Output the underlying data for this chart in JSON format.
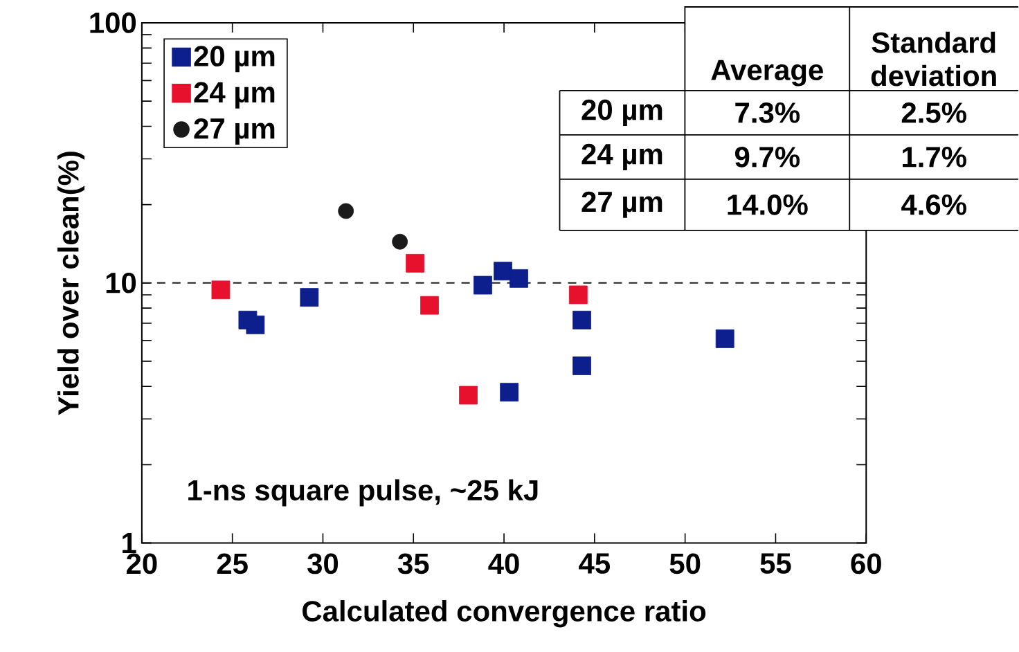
{
  "chart_data": {
    "type": "scatter",
    "xlabel": "Calculated convergence ratio",
    "ylabel": "Yield over clean(%)",
    "series": [
      {
        "name": "20 µm",
        "color": "#0d1f8c",
        "marker": "square",
        "x": [
          25.85,
          26.27,
          29.25,
          38.83,
          39.94,
          40.82,
          40.29,
          44.3,
          44.3,
          52.2
        ],
        "values": [
          7.2,
          6.9,
          8.8,
          9.8,
          11.1,
          10.4,
          3.8,
          7.2,
          4.8,
          6.1
        ]
      },
      {
        "name": "24 µm",
        "color": "#e8112d",
        "marker": "square",
        "x": [
          24.36,
          35.09,
          35.89,
          38.03,
          44.1
        ],
        "values": [
          9.4,
          11.9,
          8.2,
          3.7,
          9.0
        ]
      },
      {
        "name": "27 µm",
        "color": "#1a1a1a",
        "marker": "circle",
        "x": [
          31.27,
          34.25
        ],
        "values": [
          18.9,
          14.4
        ]
      }
    ],
    "xlim": [
      20,
      60
    ],
    "ylim": [
      1,
      100
    ],
    "xticks": [
      20,
      25,
      30,
      35,
      40,
      45,
      50,
      55,
      60
    ],
    "yticks": [
      1,
      10,
      100
    ],
    "log": "y",
    "legend": "top left",
    "ref_lines": [
      {
        "axis": "y",
        "value": 10,
        "line_style": "dashed",
        "color": "#1a1a1a"
      }
    ],
    "annotations": [
      "1-ns square pulse, ~25 kJ",
      "Average",
      "Standard deviation",
      "20 µm",
      "7.3%",
      "2.5%",
      "24 µm",
      "9.7%",
      "1.7%",
      "27 µm",
      "14.0%",
      "4.6%"
    ]
  }
}
